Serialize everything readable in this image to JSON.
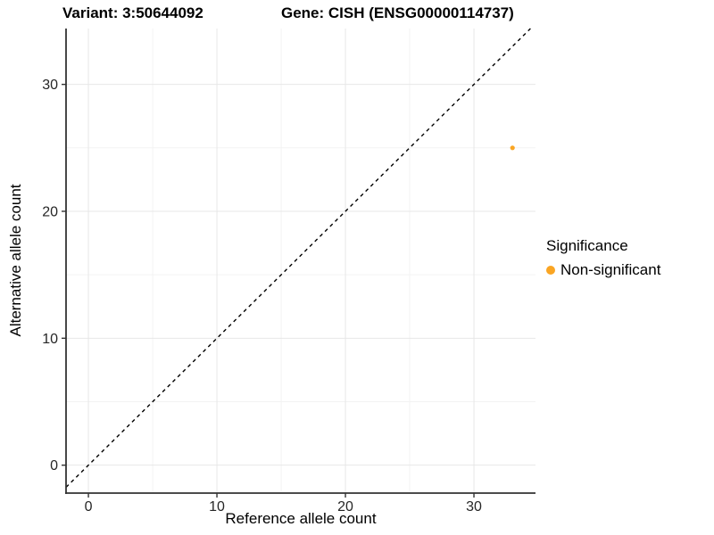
{
  "chart_data": {
    "type": "scatter",
    "title_left": "Variant: 3:50644092",
    "title_right": "Gene: CISH (ENSG00000114737)",
    "xlabel": "Reference allele count",
    "ylabel": "Alternative allele count",
    "xlim": [
      -1.74,
      34.79
    ],
    "ylim": [
      -2.2,
      34.4
    ],
    "x_ticks": [
      0,
      10,
      20,
      30
    ],
    "y_ticks": [
      0,
      10,
      20,
      30
    ],
    "x_minor_ticks": [
      5,
      15,
      25
    ],
    "y_minor_ticks": [
      5,
      15,
      25
    ],
    "grid": true,
    "reference_line": {
      "type": "identity",
      "style": "dashed",
      "color": "#000000"
    },
    "series": [
      {
        "name": "Non-significant",
        "color": "#FAA523",
        "points": [
          {
            "x": 33,
            "y": 25
          }
        ]
      }
    ],
    "legend": {
      "title": "Significance",
      "position": "right",
      "entries": [
        {
          "label": "Non-significant",
          "color": "#FAA523"
        }
      ]
    }
  },
  "style_colors": {
    "axis_line": "#333333",
    "tick_label": "#262626",
    "grid_major": "#E7E7E7",
    "grid_minor": "#F3F3F3"
  }
}
